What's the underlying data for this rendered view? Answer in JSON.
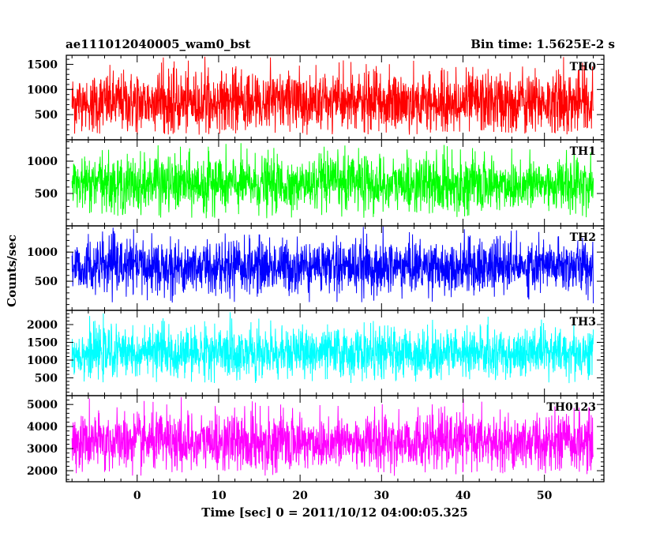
{
  "header": {
    "left_title": "ae111012040005_wam0_bst",
    "right_title": "Bin time: 1.5625E-2 s"
  },
  "chart_data": {
    "type": "line",
    "title": "ae111012040005_wam0_bst",
    "subtitle": "Bin time: 1.5625E-2 s",
    "xlabel": "Time [sec] 0 = 2011/10/12 04:00:05.325",
    "ylabel": "Counts/sec",
    "xlim": [
      -8.7,
      57.3
    ],
    "data_range_x": [
      -8,
      56
    ],
    "xticks": [
      0,
      10,
      20,
      30,
      40,
      50
    ],
    "xtick_labels": [
      "0",
      "10",
      "20",
      "30",
      "40",
      "50"
    ],
    "series": [
      {
        "name": "TH0",
        "color": "#ff0000",
        "ylim": [
          0,
          1680
        ],
        "yticks": [
          500,
          1000,
          1500
        ],
        "ytick_labels": [
          "500",
          "1000",
          "1500"
        ],
        "mean": 740,
        "sd": 300,
        "min": 100,
        "max": 1700
      },
      {
        "name": "TH1",
        "color": "#00ff00",
        "ylim": [
          0,
          1330
        ],
        "yticks": [
          500,
          1000
        ],
        "ytick_labels": [
          "500",
          "1000"
        ],
        "mean": 640,
        "sd": 215,
        "min": 110,
        "max": 1300
      },
      {
        "name": "TH2",
        "color": "#0000ff",
        "ylim": [
          0,
          1450
        ],
        "yticks": [
          500,
          1000
        ],
        "ytick_labels": [
          "500",
          "1000"
        ],
        "mean": 750,
        "sd": 230,
        "min": 120,
        "max": 1440
      },
      {
        "name": "TH3",
        "color": "#00ffff",
        "ylim": [
          0,
          2400
        ],
        "yticks": [
          500,
          1000,
          1500,
          2000
        ],
        "ytick_labels": [
          "500",
          "1000",
          "1500",
          "2000"
        ],
        "mean": 1200,
        "sd": 350,
        "min": 350,
        "max": 2450
      },
      {
        "name": "TH0123",
        "color": "#ff00ff",
        "ylim": [
          1500,
          5400
        ],
        "yticks": [
          2000,
          3000,
          4000,
          5000
        ],
        "ytick_labels": [
          "2000",
          "3000",
          "4000",
          "5000"
        ],
        "mean": 3300,
        "sd": 650,
        "min": 1750,
        "max": 5400
      }
    ],
    "grid": false,
    "legend": "panel labels at top-right of each panel"
  }
}
